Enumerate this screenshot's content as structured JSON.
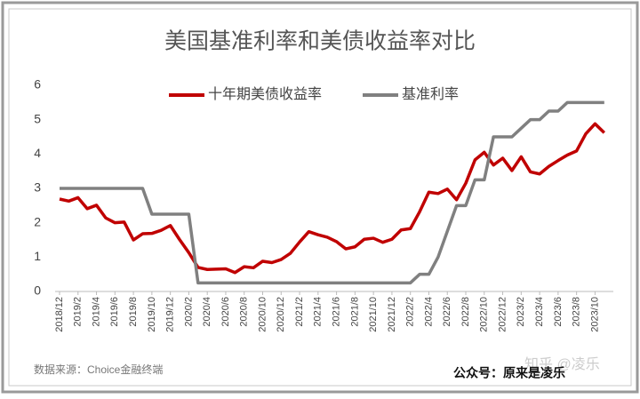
{
  "chart_data": {
    "type": "line",
    "title": "美国基准利率和美债收益率对比",
    "categories": [
      "2018/12",
      null,
      "2019/2",
      null,
      "2019/4",
      null,
      "2019/6",
      null,
      "2019/8",
      null,
      "2019/10",
      null,
      "2019/12",
      null,
      "2020/2",
      null,
      "2020/4",
      null,
      "2020/6",
      null,
      "2020/8",
      null,
      "2020/10",
      null,
      "2020/12",
      null,
      "2021/2",
      null,
      "2021/4",
      null,
      "2021/6",
      null,
      "2021/8",
      null,
      "2021/10",
      null,
      "2021/12",
      null,
      "2022/2",
      null,
      "2022/4",
      null,
      "2022/6",
      null,
      "2022/8",
      null,
      "2022/10",
      null,
      "2022/12",
      null,
      "2023/2",
      null,
      "2023/4",
      null,
      "2023/6",
      null,
      "2023/8",
      null,
      "2023/10",
      null
    ],
    "series": [
      {
        "name": "十年期美债收益率",
        "color": "#c00000",
        "values": [
          2.69,
          2.63,
          2.73,
          2.41,
          2.51,
          2.14,
          2.0,
          2.02,
          1.5,
          1.68,
          1.69,
          1.78,
          1.92,
          1.51,
          1.13,
          0.7,
          0.64,
          0.65,
          0.66,
          0.55,
          0.72,
          0.69,
          0.88,
          0.84,
          0.93,
          1.11,
          1.44,
          1.74,
          1.65,
          1.58,
          1.45,
          1.24,
          1.3,
          1.52,
          1.55,
          1.43,
          1.52,
          1.79,
          1.83,
          2.32,
          2.89,
          2.85,
          2.98,
          2.67,
          3.15,
          3.83,
          4.05,
          3.68,
          3.88,
          3.52,
          3.92,
          3.48,
          3.42,
          3.64,
          3.81,
          3.97,
          4.09,
          4.59,
          4.88,
          4.62
        ]
      },
      {
        "name": "基准利率",
        "color": "#808080",
        "values": [
          3,
          3,
          3,
          3,
          3,
          3,
          3,
          3,
          3,
          3,
          2.25,
          2.25,
          2.25,
          2.25,
          2.25,
          0.25,
          0.25,
          0.25,
          0.25,
          0.25,
          0.25,
          0.25,
          0.25,
          0.25,
          0.25,
          0.25,
          0.25,
          0.25,
          0.25,
          0.25,
          0.25,
          0.25,
          0.25,
          0.25,
          0.25,
          0.25,
          0.25,
          0.25,
          0.25,
          0.5,
          0.5,
          1.0,
          1.75,
          2.5,
          2.5,
          3.25,
          3.25,
          4.5,
          4.5,
          4.5,
          4.75,
          5.0,
          5.0,
          5.25,
          5.25,
          5.5,
          5.5,
          5.5,
          5.5,
          5.5
        ]
      }
    ],
    "ylim": [
      0,
      6
    ],
    "yticks": [
      0,
      1,
      2,
      3,
      4,
      5,
      6
    ],
    "grid": false,
    "source": "数据来源：Choice金融终端",
    "footer": "公众号：原来是凌乐",
    "watermark": "知乎 @凌乐"
  }
}
